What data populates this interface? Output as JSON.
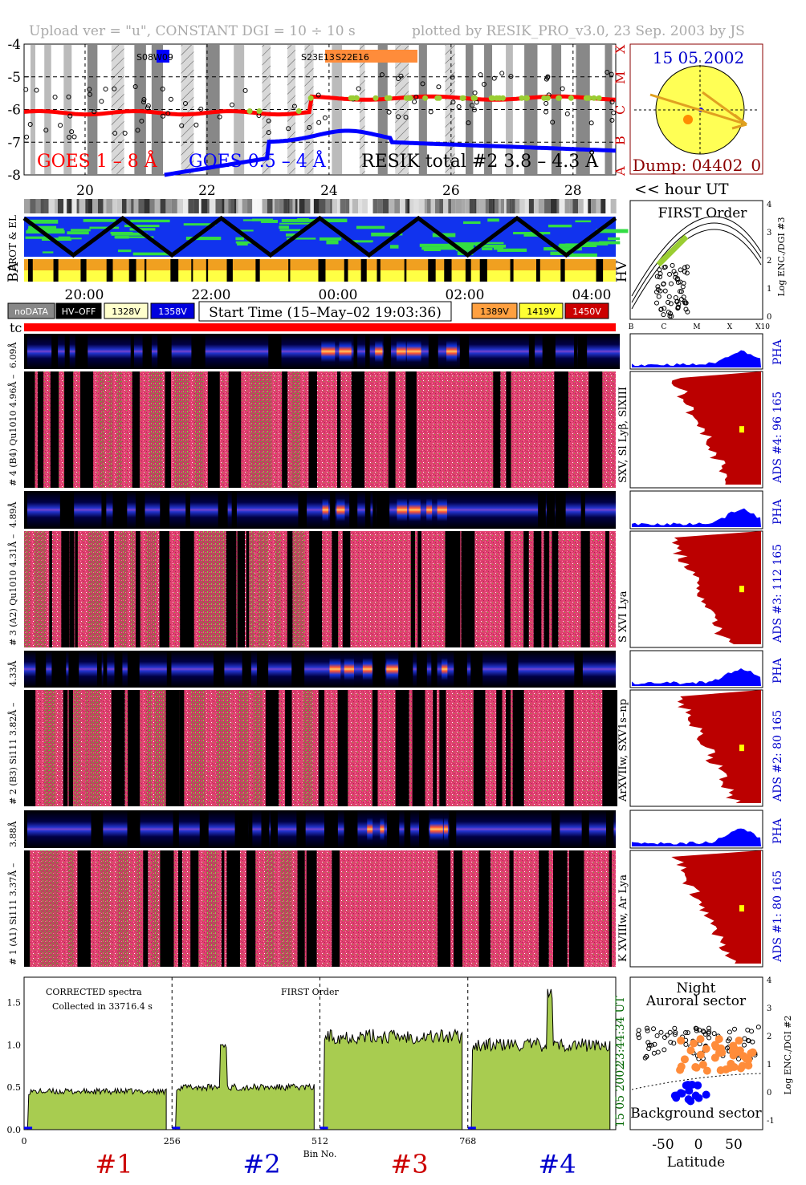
{
  "header": {
    "left": "Upload ver = \"u\", CONSTANT  DGI =  10 ÷  10 s",
    "right": "plotted by RESIK_PRO_v3.0, 23 Sep. 2003 by JS"
  },
  "colors": {
    "goes_long": "#ff0000",
    "goes_short": "#0000ff",
    "resik_points": "#000000",
    "green": "#9acd32",
    "adc_red": "#bb0000",
    "pha_blue": "#0000ff",
    "spectrum_fill": "#a8cc50",
    "orange": "#ff8c3a",
    "sun_yellow": "#ffff55"
  },
  "goes_panel": {
    "yticks": [
      "-4",
      "-5",
      "-6",
      "-7",
      "-8"
    ],
    "xticks": [
      "20",
      "22",
      "24",
      "26",
      "28"
    ],
    "class_labels": [
      "X",
      "M",
      "C",
      "B",
      "A"
    ],
    "legend_goes_long": "GOES 1 – 8 Å",
    "legend_goes_short": "GOES 0.5 – 4 Å",
    "legend_resik": "RESIK total #2  3.8 – 4.3 Å",
    "markers": [
      "S08W09",
      "S23E13",
      "S22E16"
    ]
  },
  "sun_panel": {
    "date": "15 05 2002",
    "dump": "Dump: 04402_0",
    "hour_label": "<< hour UT"
  },
  "orbit_panel": {
    "label_prot": "PROT & EL",
    "label_ba": "BA",
    "label_hv": "HV",
    "time_ticks": [
      "20:00",
      "22:00",
      "00:00",
      "02:00",
      "04:00"
    ]
  },
  "hv_legend": {
    "items": [
      {
        "label": "noDATA",
        "bg": "#888888",
        "fg": "#ffffff"
      },
      {
        "label": "HV–OFF",
        "bg": "#000000",
        "fg": "#ffffff"
      },
      {
        "label": "1328V",
        "bg": "#ffffcc",
        "fg": "#000000"
      },
      {
        "label": "1358V",
        "bg": "#0000dd",
        "fg": "#ffffff"
      },
      {
        "label": "1389V",
        "bg": "#ffa040",
        "fg": "#000000"
      },
      {
        "label": "1419V",
        "bg": "#ffff33",
        "fg": "#000000"
      },
      {
        "label": "1450V",
        "bg": "#cc0000",
        "fg": "#ffffff"
      }
    ],
    "start_time": "Start Time (15–May–02 19:03:36)",
    "tc": "tc"
  },
  "first_order_panel": {
    "title": "FIRST Order",
    "ylabel": "Log ENC./DGI #3",
    "yticks": [
      "4",
      "3",
      "2",
      "1",
      "0"
    ],
    "xticks": [
      "B",
      "C",
      "M",
      "X",
      "X10"
    ]
  },
  "channels": [
    {
      "pha_left": "6.09Å",
      "adc_left": "# 4 (B4) Qu1010 4.96Å –",
      "side": "SXV, Sl Lyβ, SlXIII",
      "ads": "ADS #4:   96 165",
      "pha": "PHA"
    },
    {
      "pha_left": "4.89Å",
      "adc_left": "# 3 (A2) Qu1010  4.31Å –",
      "side": "S XVI Lya",
      "ads": "ADS #3:   112 165",
      "pha": "PHA"
    },
    {
      "pha_left": "4.33Å",
      "adc_left": "# 2 (B3) Si111  3.82Å –",
      "side": "ArXVIIw, SXV1s–np",
      "ads": "ADS #2:   80 165",
      "pha": "PHA"
    },
    {
      "pha_left": "3.88Å",
      "adc_left": "# 1 (A1) Si111  3.37Å –",
      "side": "K XVIIIw, Ar Lya",
      "ads": "ADS #1:   80 165",
      "pha": "PHA"
    }
  ],
  "spectrum_panel": {
    "label1": "CORRECTED spectra",
    "label2": "Collected in 33716.4 s",
    "label3": "FIRST Order",
    "yticks": [
      "1.5",
      "1.0",
      "0.5",
      "0.0"
    ],
    "xticks": [
      "0",
      "256",
      "512",
      "768"
    ],
    "xlabel": "Bin No.",
    "time_right": "23:44:34 UT",
    "date_right": "15 05 2002",
    "channel_labels": [
      {
        "text": "#1",
        "color": "#cc0000"
      },
      {
        "text": "#2",
        "color": "#0000cc"
      },
      {
        "text": "#3",
        "color": "#cc0000"
      },
      {
        "text": "#4",
        "color": "#0000cc"
      }
    ]
  },
  "latitude_panel": {
    "night": "Night",
    "auroral": "Auroral sector",
    "background": "Background sector",
    "xlabel": "Latitude",
    "xticks": [
      "-50",
      "0",
      "50"
    ],
    "yticks": [
      "4",
      "3",
      "2",
      "1",
      "0",
      "-1"
    ],
    "ylabel": "Log ENC./DGI #2"
  },
  "chart_data": {
    "type": "area",
    "title": "",
    "xlabel": "Bin No.",
    "ylabel": "",
    "xlim": [
      0,
      1024
    ],
    "ylim": [
      0,
      1.8
    ],
    "segments": [
      {
        "name": "#1",
        "x": [
          0,
          256
        ],
        "level": 0.45
      },
      {
        "name": "#2",
        "x": [
          256,
          512
        ],
        "level": 0.5
      },
      {
        "name": "#3",
        "x": [
          512,
          768
        ],
        "level": 1.1
      },
      {
        "name": "#4",
        "x": [
          768,
          1024
        ],
        "level": 1.0
      }
    ],
    "goes_ylim": [
      -8,
      -4
    ],
    "goes_xlim": [
      19,
      28.7
    ]
  }
}
